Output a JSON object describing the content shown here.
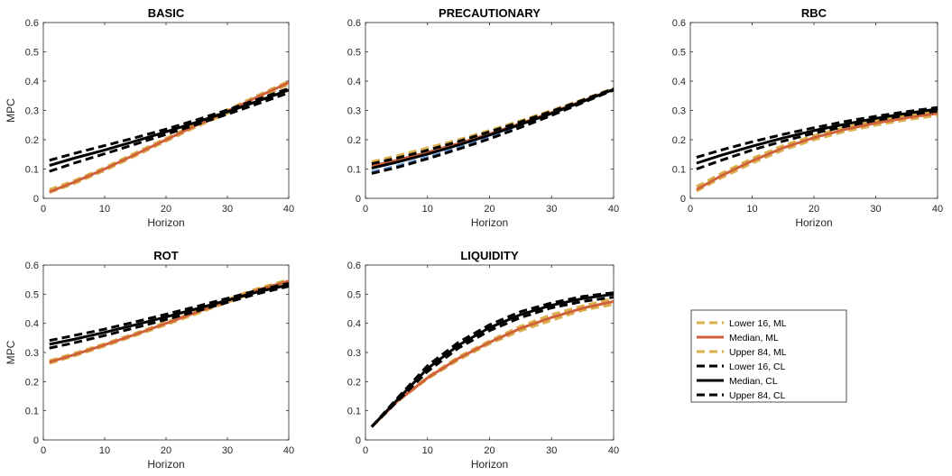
{
  "colors": {
    "ml_band": "#d9b04a",
    "ml_median": "#d0613a",
    "cl": "#000000",
    "precautionary_ml_band_lower": "#5b8fd6"
  },
  "legend": {
    "entries": [
      {
        "label": "Lower 16, ML",
        "style": "dashed",
        "color": "#d9b04a"
      },
      {
        "label": "Median, ML",
        "style": "solid",
        "color": "#d0613a"
      },
      {
        "label": "Upper 84, ML",
        "style": "dashed",
        "color": "#d9b04a"
      },
      {
        "label": "Lower 16, CL",
        "style": "dashed",
        "color": "#000000"
      },
      {
        "label": "Median, CL",
        "style": "solid",
        "color": "#000000"
      },
      {
        "label": "Upper 84, CL",
        "style": "dashed",
        "color": "#000000"
      }
    ]
  },
  "chart_data": [
    {
      "type": "line",
      "title": "BASIC",
      "xlabel": "Horizon",
      "ylabel": "MPC",
      "xlim": [
        0,
        40
      ],
      "ylim": [
        0,
        0.6
      ],
      "xticks": [
        "0",
        "10",
        "20",
        "30",
        "40"
      ],
      "yticks": [
        "0",
        "0.1",
        "0.2",
        "0.3",
        "0.4",
        "0.5",
        "0.6"
      ],
      "x": [
        1,
        5,
        10,
        15,
        20,
        25,
        30,
        35,
        40
      ],
      "series": [
        {
          "name": "Lower 16, ML",
          "values": [
            0.02,
            0.05,
            0.095,
            0.145,
            0.195,
            0.245,
            0.29,
            0.34,
            0.39
          ]
        },
        {
          "name": "Median, ML",
          "values": [
            0.022,
            0.055,
            0.1,
            0.15,
            0.2,
            0.25,
            0.297,
            0.347,
            0.395
          ]
        },
        {
          "name": "Upper 84, ML",
          "values": [
            0.03,
            0.06,
            0.105,
            0.155,
            0.205,
            0.255,
            0.302,
            0.352,
            0.4
          ]
        },
        {
          "name": "Lower 16, CL",
          "values": [
            0.092,
            0.12,
            0.152,
            0.185,
            0.218,
            0.252,
            0.287,
            0.323,
            0.36
          ]
        },
        {
          "name": "Median, CL",
          "values": [
            0.112,
            0.137,
            0.165,
            0.195,
            0.227,
            0.26,
            0.295,
            0.332,
            0.37
          ]
        },
        {
          "name": "Upper 84, CL",
          "values": [
            0.13,
            0.153,
            0.18,
            0.207,
            0.236,
            0.268,
            0.302,
            0.338,
            0.375
          ]
        }
      ]
    },
    {
      "type": "line",
      "title": "PRECAUTIONARY",
      "xlabel": "Horizon",
      "ylabel": "",
      "xlim": [
        0,
        40
      ],
      "ylim": [
        0,
        0.6
      ],
      "xticks": [
        "0",
        "10",
        "20",
        "30",
        "40"
      ],
      "yticks": [
        "0",
        "0.1",
        "0.2",
        "0.3",
        "0.4",
        "0.5",
        "0.6"
      ],
      "x": [
        1,
        5,
        10,
        15,
        20,
        25,
        30,
        35,
        40
      ],
      "series": [
        {
          "name": "Lower 16, ML",
          "values": [
            0.09,
            0.11,
            0.14,
            0.172,
            0.207,
            0.245,
            0.285,
            0.327,
            0.37
          ]
        },
        {
          "name": "Median, ML",
          "values": [
            0.11,
            0.13,
            0.157,
            0.187,
            0.22,
            0.256,
            0.293,
            0.332,
            0.372
          ]
        },
        {
          "name": "Upper 84, ML",
          "values": [
            0.125,
            0.145,
            0.172,
            0.2,
            0.232,
            0.265,
            0.3,
            0.337,
            0.375
          ]
        },
        {
          "name": "Lower 16, CL",
          "values": [
            0.085,
            0.105,
            0.135,
            0.168,
            0.203,
            0.242,
            0.283,
            0.326,
            0.37
          ]
        },
        {
          "name": "Median, CL",
          "values": [
            0.103,
            0.123,
            0.151,
            0.182,
            0.216,
            0.252,
            0.29,
            0.33,
            0.372
          ]
        },
        {
          "name": "Upper 84, CL",
          "values": [
            0.118,
            0.137,
            0.164,
            0.194,
            0.227,
            0.261,
            0.297,
            0.335,
            0.374
          ]
        }
      ]
    },
    {
      "type": "line",
      "title": "RBC",
      "xlabel": "Horizon",
      "ylabel": "",
      "xlim": [
        0,
        40
      ],
      "ylim": [
        0,
        0.6
      ],
      "xticks": [
        "0",
        "10",
        "20",
        "30",
        "40"
      ],
      "yticks": [
        "0",
        "0.1",
        "0.2",
        "0.3",
        "0.4",
        "0.5",
        "0.6"
      ],
      "x": [
        1,
        5,
        10,
        15,
        20,
        25,
        30,
        35,
        40
      ],
      "series": [
        {
          "name": "Lower 16, ML",
          "values": [
            0.025,
            0.07,
            0.12,
            0.165,
            0.2,
            0.228,
            0.25,
            0.268,
            0.283
          ]
        },
        {
          "name": "Median, ML",
          "values": [
            0.03,
            0.077,
            0.128,
            0.172,
            0.207,
            0.235,
            0.257,
            0.275,
            0.29
          ]
        },
        {
          "name": "Upper 84, ML",
          "values": [
            0.04,
            0.085,
            0.136,
            0.18,
            0.214,
            0.242,
            0.264,
            0.282,
            0.297
          ]
        },
        {
          "name": "Lower 16, CL",
          "values": [
            0.1,
            0.13,
            0.165,
            0.195,
            0.222,
            0.245,
            0.266,
            0.284,
            0.298
          ]
        },
        {
          "name": "Median, CL",
          "values": [
            0.12,
            0.147,
            0.178,
            0.206,
            0.231,
            0.253,
            0.273,
            0.29,
            0.305
          ]
        },
        {
          "name": "Upper 84, CL",
          "values": [
            0.14,
            0.165,
            0.193,
            0.218,
            0.241,
            0.262,
            0.28,
            0.296,
            0.31
          ]
        }
      ]
    },
    {
      "type": "line",
      "title": "ROT",
      "xlabel": "Horizon",
      "ylabel": "MPC",
      "xlim": [
        0,
        40
      ],
      "ylim": [
        0,
        0.6
      ],
      "xticks": [
        "0",
        "10",
        "20",
        "30",
        "40"
      ],
      "yticks": [
        "0",
        "0.1",
        "0.2",
        "0.3",
        "0.4",
        "0.5",
        "0.6"
      ],
      "x": [
        1,
        5,
        10,
        15,
        20,
        25,
        30,
        35,
        40
      ],
      "series": [
        {
          "name": "Lower 16, ML",
          "values": [
            0.263,
            0.288,
            0.322,
            0.358,
            0.395,
            0.433,
            0.472,
            0.51,
            0.54
          ]
        },
        {
          "name": "Median, ML",
          "values": [
            0.267,
            0.292,
            0.326,
            0.362,
            0.4,
            0.438,
            0.477,
            0.515,
            0.545
          ]
        },
        {
          "name": "Upper 84, ML",
          "values": [
            0.272,
            0.297,
            0.33,
            0.366,
            0.404,
            0.442,
            0.482,
            0.52,
            0.55
          ]
        },
        {
          "name": "Lower 16, CL",
          "values": [
            0.315,
            0.333,
            0.358,
            0.385,
            0.413,
            0.442,
            0.472,
            0.502,
            0.527
          ]
        },
        {
          "name": "Median, CL",
          "values": [
            0.328,
            0.345,
            0.369,
            0.395,
            0.422,
            0.45,
            0.479,
            0.508,
            0.532
          ]
        },
        {
          "name": "Upper 84, CL",
          "values": [
            0.341,
            0.358,
            0.38,
            0.405,
            0.431,
            0.458,
            0.486,
            0.514,
            0.537
          ]
        }
      ]
    },
    {
      "type": "line",
      "title": "LIQUIDITY",
      "xlabel": "Horizon",
      "ylabel": "",
      "xlim": [
        0,
        40
      ],
      "ylim": [
        0,
        0.6
      ],
      "xticks": [
        "0",
        "10",
        "20",
        "30",
        "40"
      ],
      "yticks": [
        "0",
        "0.1",
        "0.2",
        "0.3",
        "0.4",
        "0.5",
        "0.6"
      ],
      "x": [
        1,
        5,
        10,
        15,
        20,
        25,
        30,
        35,
        40
      ],
      "series": [
        {
          "name": "Lower 16, ML",
          "values": [
            0.045,
            0.13,
            0.21,
            0.275,
            0.33,
            0.375,
            0.41,
            0.445,
            0.465
          ]
        },
        {
          "name": "Median, ML",
          "values": [
            0.045,
            0.13,
            0.213,
            0.28,
            0.335,
            0.383,
            0.42,
            0.452,
            0.475
          ]
        },
        {
          "name": "Upper 84, ML",
          "values": [
            0.045,
            0.13,
            0.216,
            0.285,
            0.34,
            0.39,
            0.43,
            0.46,
            0.485
          ]
        },
        {
          "name": "Lower 16, CL",
          "values": [
            0.045,
            0.13,
            0.235,
            0.315,
            0.375,
            0.42,
            0.453,
            0.475,
            0.49
          ]
        },
        {
          "name": "Median, CL",
          "values": [
            0.045,
            0.135,
            0.245,
            0.325,
            0.385,
            0.43,
            0.462,
            0.485,
            0.5
          ]
        },
        {
          "name": "Upper 84, CL",
          "values": [
            0.045,
            0.14,
            0.255,
            0.335,
            0.395,
            0.44,
            0.47,
            0.492,
            0.505
          ]
        }
      ]
    }
  ]
}
